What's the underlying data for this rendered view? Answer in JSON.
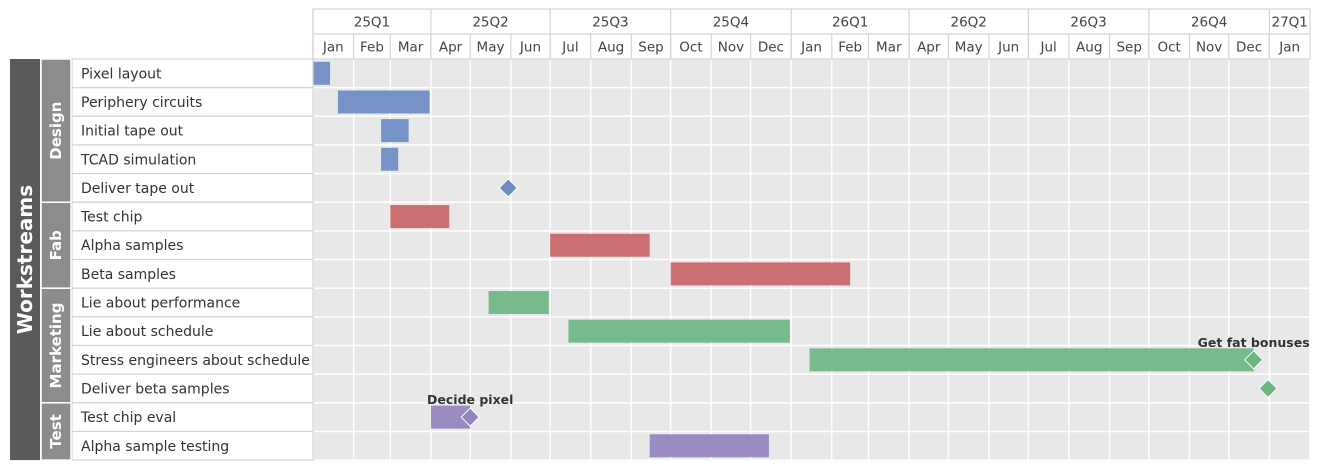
{
  "chart_data": {
    "type": "gantt",
    "top_group": "Workstreams",
    "quarters": [
      "25Q1",
      "25Q2",
      "25Q3",
      "25Q4",
      "26Q1",
      "26Q2",
      "26Q3",
      "26Q4",
      "27Q1"
    ],
    "months": [
      "Jan",
      "Feb",
      "Mar",
      "Apr",
      "May",
      "Jun",
      "Jul",
      "Aug",
      "Sep",
      "Oct",
      "Nov",
      "Dec",
      "Jan",
      "Feb",
      "Mar",
      "Apr",
      "May",
      "Jun",
      "Jul",
      "Aug",
      "Sep",
      "Oct",
      "Nov",
      "Dec",
      "Jan"
    ],
    "timeline_start": "2025-01-01",
    "timeline_end": "2027-01-31",
    "groups": [
      {
        "name": "Design",
        "tasks": [
          "Pixel layout",
          "Periphery circuits",
          "Initial tape out",
          "TCAD simulation",
          "Deliver tape out"
        ]
      },
      {
        "name": "Fab",
        "tasks": [
          "Test chip",
          "Alpha samples",
          "Beta samples"
        ]
      },
      {
        "name": "Marketing",
        "tasks": [
          "Lie about performance",
          "Lie about schedule",
          "Stress engineers about schedule",
          "Deliver beta samples"
        ]
      },
      {
        "name": "Test",
        "tasks": [
          "Test chip eval",
          "Alpha sample testing"
        ]
      }
    ],
    "colors": {
      "Design": "#6b8bc4",
      "Fab": "#c86366",
      "Marketing": "#6db583",
      "Test": "#9283bd"
    },
    "bars": [
      {
        "task": "Pixel layout",
        "group": "Design",
        "start": "2025-01-01",
        "end": "2025-01-14"
      },
      {
        "task": "Periphery circuits",
        "group": "Design",
        "start": "2025-01-20",
        "end": "2025-03-31"
      },
      {
        "task": "Initial tape out",
        "group": "Design",
        "start": "2025-02-22",
        "end": "2025-03-15"
      },
      {
        "task": "TCAD simulation",
        "group": "Design",
        "start": "2025-02-22",
        "end": "2025-03-07"
      },
      {
        "task": "Test chip",
        "group": "Fab",
        "start": "2025-03-01",
        "end": "2025-04-15"
      },
      {
        "task": "Alpha samples",
        "group": "Fab",
        "start": "2025-07-01",
        "end": "2025-09-15"
      },
      {
        "task": "Beta samples",
        "group": "Fab",
        "start": "2025-10-01",
        "end": "2026-02-15"
      },
      {
        "task": "Lie about performance",
        "group": "Marketing",
        "start": "2025-05-15",
        "end": "2025-06-30"
      },
      {
        "task": "Lie about schedule",
        "group": "Marketing",
        "start": "2025-07-15",
        "end": "2025-12-31"
      },
      {
        "task": "Stress engineers about schedule",
        "group": "Marketing",
        "start": "2026-01-15",
        "end": "2026-12-20"
      },
      {
        "task": "Test chip eval",
        "group": "Test",
        "start": "2025-04-01",
        "end": "2025-05-01"
      },
      {
        "task": "Alpha sample testing",
        "group": "Test",
        "start": "2025-09-15",
        "end": "2025-12-15"
      }
    ],
    "milestones": [
      {
        "task": "Deliver tape out",
        "group": "Design",
        "date": "2025-05-30",
        "label": ""
      },
      {
        "task": "Stress engineers about schedule",
        "group": "Marketing",
        "date": "2026-12-20",
        "label": "Get fat bonuses"
      },
      {
        "task": "Deliver beta samples",
        "group": "Marketing",
        "date": "2026-12-31",
        "label": ""
      },
      {
        "task": "Test chip eval",
        "group": "Test",
        "date": "2025-05-01",
        "label": "Decide pixel"
      }
    ]
  }
}
